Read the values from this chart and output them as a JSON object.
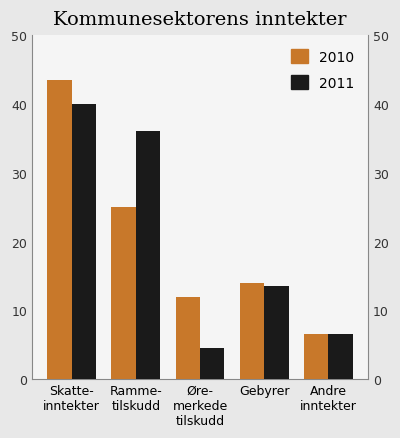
{
  "title": "Kommunesektorens inntekter",
  "categories": [
    "Skatte-\ninntekter",
    "Ramme-\ntilskudd",
    "Øre-\nmerkede\ntilskudd",
    "Gebyrer",
    "Andre\ninntekter"
  ],
  "values_2010": [
    43.5,
    25.0,
    12.0,
    14.0,
    6.5
  ],
  "values_2011": [
    40.0,
    36.0,
    4.5,
    13.5,
    6.5
  ],
  "color_2010": "#C8782A",
  "color_2011": "#1A1A1A",
  "legend_labels": [
    "2010",
    "2011"
  ],
  "ylim": [
    0,
    50
  ],
  "yticks": [
    0,
    10,
    20,
    30,
    40,
    50
  ],
  "bar_width": 0.38,
  "title_fontsize": 14,
  "tick_fontsize": 9,
  "legend_fontsize": 10,
  "background_color": "#e8e8e8",
  "plot_bg_color": "#f5f5f5"
}
